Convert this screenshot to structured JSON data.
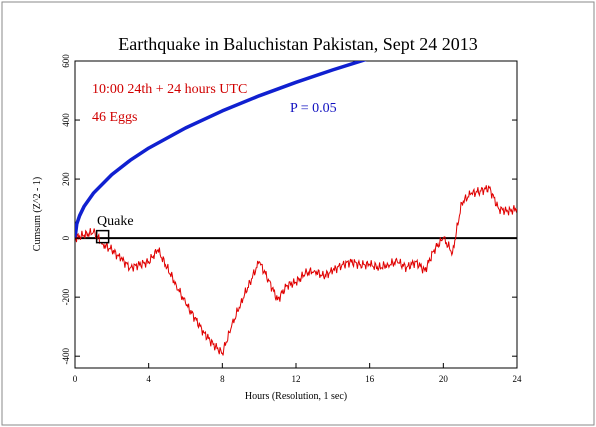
{
  "chart_data": {
    "type": "line",
    "title": "Earthquake in Baluchistan Pakistan, Sept 24 2013",
    "xlabel": "Hours (Resolution, 1 sec)",
    "ylabel": "Cumsum (Z^2 - 1)",
    "xlim": [
      0,
      24
    ],
    "ylim": [
      -440,
      600
    ],
    "x_ticks": [
      0,
      4,
      8,
      12,
      16,
      20,
      24
    ],
    "y_ticks": [
      600,
      400,
      200,
      0,
      -200,
      -400
    ],
    "grid": false,
    "annotations": {
      "time_window": "10:00 24th + 24 hours UTC",
      "eggs": "46 Eggs",
      "p_label": "P = 0.05",
      "event_label": "Quake",
      "event_marker": {
        "x": 1.5,
        "y": 5
      }
    },
    "colors": {
      "cumsum": "#e00000",
      "probability": "#1020d0",
      "zero_line": "#000000",
      "annotation_red": "#d00000",
      "annotation_blue": "#1010c0"
    },
    "series": [
      {
        "key": "cumsum",
        "x": [
          0,
          0.5,
          1.0,
          1.5,
          2.0,
          2.5,
          3.0,
          3.5,
          4.0,
          4.5,
          5.0,
          5.5,
          6.0,
          6.5,
          7.0,
          7.5,
          8.0,
          8.5,
          9.0,
          9.5,
          10.0,
          10.5,
          11.0,
          11.5,
          12.0,
          12.5,
          13.0,
          13.5,
          14.0,
          14.5,
          15.0,
          15.5,
          16.0,
          16.5,
          17.0,
          17.5,
          18.0,
          18.5,
          19.0,
          19.5,
          20.0,
          20.5,
          21.0,
          21.5,
          22.0,
          22.5,
          23.0,
          23.5,
          24.0
        ],
        "values": [
          0,
          10,
          20,
          -20,
          -40,
          -70,
          -100,
          -90,
          -80,
          -40,
          -100,
          -160,
          -220,
          -270,
          -320,
          -360,
          -390,
          -300,
          -220,
          -150,
          -80,
          -140,
          -210,
          -160,
          -150,
          -120,
          -110,
          -130,
          -110,
          -90,
          -80,
          -90,
          -90,
          -100,
          -90,
          -80,
          -100,
          -80,
          -110,
          -40,
          0,
          -50,
          120,
          150,
          160,
          170,
          100,
          90,
          100
        ]
      },
      {
        "key": "probability",
        "x": [
          0,
          0.1,
          0.25,
          0.5,
          1,
          2,
          3,
          4,
          6,
          8,
          10,
          12,
          14,
          16,
          18,
          18.6
        ],
        "values": [
          0,
          48,
          76,
          108,
          152,
          215,
          264,
          305,
          373,
          431,
          482,
          528,
          570,
          609,
          646,
          657
        ]
      }
    ]
  }
}
